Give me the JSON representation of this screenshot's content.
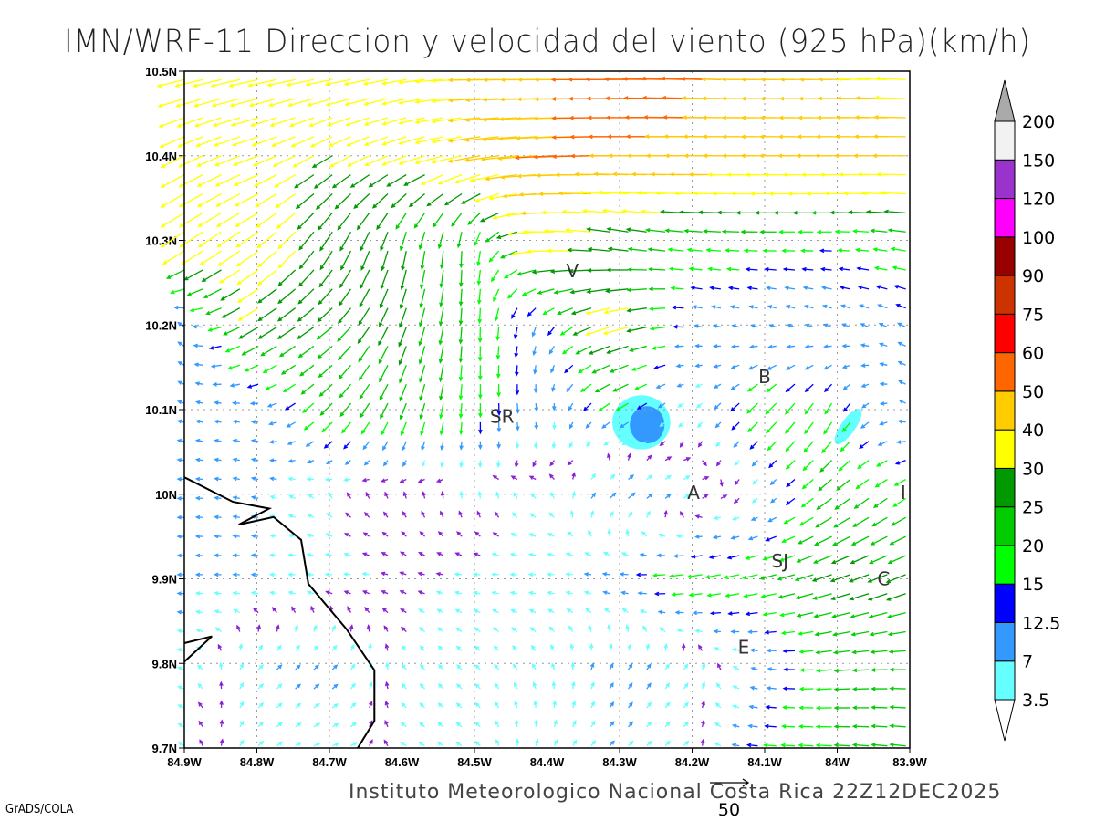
{
  "title": "IMN/WRF-11 Direccion y velocidad del viento (925 hPa)(km/h)",
  "footer": "Instituto Meteorologico Nacional Costa Rica 22Z12DEC2025",
  "grads_label": "GrADS/COLA",
  "reference_vector": {
    "value": 50,
    "label": "50"
  },
  "axes": {
    "lon_ticks": [
      -84.9,
      -84.8,
      -84.7,
      -84.6,
      -84.5,
      -84.4,
      -84.3,
      -84.2,
      -84.1,
      -84.0,
      -83.9
    ],
    "lon_labels": [
      "84.9W",
      "84.8W",
      "84.7W",
      "84.6W",
      "84.5W",
      "84.4W",
      "84.3W",
      "84.2W",
      "84.1W",
      "84W",
      "83.9W"
    ],
    "lat_ticks": [
      10.5,
      10.4,
      10.3,
      10.2,
      10.1,
      10.0,
      9.9,
      9.8,
      9.7
    ],
    "lat_labels": [
      "10.5N",
      "10.4N",
      "10.3N",
      "10.2N",
      "10.1N",
      "10N",
      "9.9N",
      "9.8N",
      "9.7N"
    ],
    "lon_range": [
      -84.9,
      -83.9
    ],
    "lat_range": [
      9.7,
      10.5
    ]
  },
  "colorbar": {
    "levels": [
      "3.5",
      "7",
      "12.5",
      "15",
      "20",
      "25",
      "30",
      "40",
      "50",
      "60",
      "75",
      "90",
      "100",
      "120",
      "150",
      "200"
    ],
    "thresholds": [
      3.5,
      7,
      12.5,
      15,
      20,
      25,
      30,
      40,
      50,
      60,
      75,
      90,
      100,
      120,
      150,
      200
    ],
    "colors": [
      "#66ffff",
      "#3399ff",
      "#0000ff",
      "#00ff00",
      "#00cc00",
      "#009900",
      "#ffff00",
      "#ffcc00",
      "#ff6600",
      "#ff0000",
      "#cc3300",
      "#990000",
      "#ff00ff",
      "#9933cc",
      "#f2f2f2"
    ],
    "low_color": "#ffffff",
    "high_color": "#aaaaaa",
    "below_min_arrow_color": "#8a1fd6"
  },
  "cities": [
    {
      "label": "V",
      "lon": -84.365,
      "lat": 10.264
    },
    {
      "label": "SR",
      "lon": -84.462,
      "lat": 10.092
    },
    {
      "label": "B",
      "lon": -84.1,
      "lat": 10.139
    },
    {
      "label": "A",
      "lon": -84.198,
      "lat": 10.002
    },
    {
      "label": "I",
      "lon": -83.909,
      "lat": 10.002
    },
    {
      "label": "SJ",
      "lon": -84.079,
      "lat": 9.921
    },
    {
      "label": "C",
      "lon": -83.936,
      "lat": 9.9
    },
    {
      "label": "E",
      "lon": -84.129,
      "lat": 9.819
    }
  ],
  "coastline": [
    [
      [
        -84.9,
        10.02
      ],
      [
        -84.833,
        9.991
      ],
      [
        -84.783,
        9.983
      ],
      [
        -84.825,
        9.964
      ],
      [
        -84.777,
        9.973
      ],
      [
        -84.739,
        9.946
      ],
      [
        -84.729,
        9.894
      ],
      [
        -84.676,
        9.84
      ],
      [
        -84.638,
        9.792
      ],
      [
        -84.638,
        9.732
      ],
      [
        -84.661,
        9.7
      ]
    ],
    [
      [
        -84.9,
        9.824
      ],
      [
        -84.862,
        9.832
      ],
      [
        -84.9,
        9.802
      ]
    ]
  ],
  "shaded_speed_areas": [
    {
      "lon": -84.27,
      "lat": 10.085,
      "rlon": 0.04,
      "rlat": 0.032,
      "level": "3.5-7"
    },
    {
      "lon": -84.262,
      "lat": 10.082,
      "rlon": 0.024,
      "rlat": 0.022,
      "level": "7-12.5"
    },
    {
      "lon": -83.985,
      "lat": 10.08,
      "rlon": 0.01,
      "rlat": 0.025,
      "level": "3.5-7"
    }
  ],
  "wind_grid": {
    "units": "km/h",
    "lons": [
      -84.9,
      -84.8,
      -84.7,
      -84.6,
      -84.5,
      -84.4,
      -84.3,
      -84.2,
      -84.1,
      -84.0,
      -83.9
    ],
    "lats": [
      10.5,
      10.4,
      10.3,
      10.2,
      10.1,
      10.0,
      9.9,
      9.8,
      9.7
    ],
    "u": [
      [
        -35,
        -38,
        -35,
        -30,
        -40,
        -45,
        -55,
        -55,
        -45,
        -40,
        -38
      ],
      [
        -30,
        -32,
        -25,
        -30,
        -40,
        -50,
        -50,
        -48,
        -45,
        -45,
        -42
      ],
      [
        -30,
        -28,
        -15,
        -5,
        0,
        -40,
        -25,
        -20,
        -18,
        -15,
        -20
      ],
      [
        -8,
        -25,
        -20,
        -10,
        0,
        -5,
        -35,
        -10,
        -8,
        -10,
        -10
      ],
      [
        -7,
        -8,
        -15,
        -8,
        0,
        2,
        -15,
        -3,
        -15,
        -8,
        -8
      ],
      [
        -8,
        -8,
        -2,
        -1,
        0,
        -3,
        10,
        5,
        -3,
        -20,
        -15
      ],
      [
        -8,
        -7,
        -5,
        -3,
        -4,
        -5,
        -10,
        -20,
        -20,
        -25,
        -25
      ],
      [
        -6,
        5,
        6,
        -2,
        -5,
        -3,
        5,
        3,
        -8,
        -20,
        -20
      ],
      [
        -3,
        4,
        6,
        -3,
        -4,
        3,
        5,
        3,
        -15,
        -20,
        -20
      ]
    ],
    "v": [
      [
        -8,
        -8,
        -6,
        -5,
        0,
        0,
        0,
        2,
        0,
        0,
        2
      ],
      [
        -15,
        -12,
        -15,
        -12,
        -8,
        -3,
        0,
        0,
        0,
        0,
        0
      ],
      [
        -20,
        -20,
        -25,
        -25,
        -20,
        0,
        5,
        2,
        0,
        0,
        3
      ],
      [
        6,
        -15,
        -15,
        -25,
        -20,
        -10,
        -10,
        2,
        3,
        4,
        5
      ],
      [
        2,
        1,
        -15,
        -20,
        -18,
        -8,
        -10,
        -3,
        -15,
        -15,
        5
      ],
      [
        0,
        2,
        3,
        3,
        4,
        3,
        8,
        3,
        -3,
        -15,
        -10
      ],
      [
        0,
        0,
        0,
        1,
        0,
        0,
        1,
        -3,
        -5,
        -8,
        -10
      ],
      [
        2,
        5,
        6,
        3,
        5,
        5,
        8,
        4,
        2,
        -2,
        0
      ],
      [
        2,
        4,
        2,
        2,
        3,
        6,
        5,
        3,
        1,
        1,
        2
      ]
    ]
  }
}
